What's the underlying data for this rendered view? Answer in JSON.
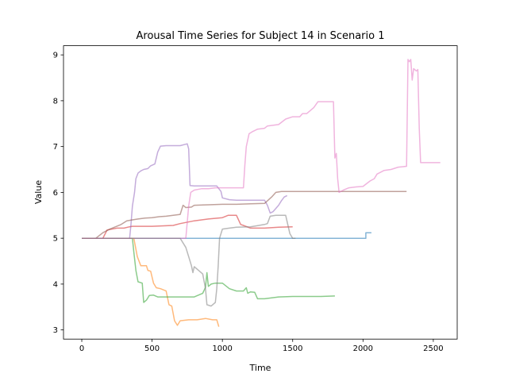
{
  "chart_data": {
    "type": "line",
    "title": "Arousal Time Series for Subject 14 in Scenario 1",
    "xlabel": "Time",
    "ylabel": "Value",
    "xlim": [
      -130,
      2670
    ],
    "ylim": [
      2.8,
      9.2
    ],
    "xticks": [
      0,
      500,
      1000,
      1500,
      2000,
      2500
    ],
    "yticks": [
      3,
      4,
      5,
      6,
      7,
      8,
      9
    ],
    "grid": false,
    "legend": "none",
    "series": [
      {
        "color": "#1f77b4",
        "points": [
          [
            0,
            5.0
          ],
          [
            500,
            5.0
          ],
          [
            1000,
            5.0
          ],
          [
            1500,
            5.0
          ],
          [
            2020,
            5.0
          ],
          [
            2020,
            5.12
          ],
          [
            2060,
            5.12
          ]
        ]
      },
      {
        "color": "#ff7f0e",
        "points": [
          [
            0,
            5.0
          ],
          [
            370,
            5.0
          ],
          [
            395,
            4.6
          ],
          [
            420,
            4.4
          ],
          [
            460,
            4.4
          ],
          [
            470,
            4.3
          ],
          [
            490,
            4.28
          ],
          [
            510,
            4.02
          ],
          [
            530,
            3.92
          ],
          [
            560,
            3.9
          ],
          [
            600,
            3.85
          ],
          [
            620,
            3.55
          ],
          [
            640,
            3.52
          ],
          [
            660,
            3.2
          ],
          [
            680,
            3.1
          ],
          [
            700,
            3.2
          ],
          [
            760,
            3.22
          ],
          [
            820,
            3.22
          ],
          [
            880,
            3.25
          ],
          [
            930,
            3.22
          ],
          [
            960,
            3.22
          ],
          [
            975,
            3.07
          ]
        ]
      },
      {
        "color": "#2ca02c",
        "points": [
          [
            0,
            5.0
          ],
          [
            360,
            5.0
          ],
          [
            370,
            4.7
          ],
          [
            385,
            4.3
          ],
          [
            400,
            4.05
          ],
          [
            430,
            4.02
          ],
          [
            440,
            3.6
          ],
          [
            460,
            3.65
          ],
          [
            480,
            3.75
          ],
          [
            510,
            3.76
          ],
          [
            540,
            3.72
          ],
          [
            600,
            3.72
          ],
          [
            700,
            3.72
          ],
          [
            800,
            3.72
          ],
          [
            860,
            3.8
          ],
          [
            880,
            3.93
          ],
          [
            890,
            4.25
          ],
          [
            900,
            3.95
          ],
          [
            920,
            4.0
          ],
          [
            950,
            4.02
          ],
          [
            1000,
            4.02
          ],
          [
            1050,
            3.9
          ],
          [
            1100,
            3.85
          ],
          [
            1150,
            3.85
          ],
          [
            1170,
            3.92
          ],
          [
            1180,
            3.8
          ],
          [
            1200,
            3.83
          ],
          [
            1230,
            3.82
          ],
          [
            1250,
            3.68
          ],
          [
            1300,
            3.68
          ],
          [
            1350,
            3.7
          ],
          [
            1400,
            3.72
          ],
          [
            1500,
            3.73
          ],
          [
            1600,
            3.73
          ],
          [
            1700,
            3.73
          ],
          [
            1800,
            3.74
          ]
        ]
      },
      {
        "color": "#d62728",
        "points": [
          [
            0,
            5.0
          ],
          [
            150,
            5.0
          ],
          [
            180,
            5.18
          ],
          [
            250,
            5.22
          ],
          [
            300,
            5.22
          ],
          [
            340,
            5.25
          ],
          [
            360,
            5.26
          ],
          [
            500,
            5.26
          ],
          [
            650,
            5.28
          ],
          [
            700,
            5.32
          ],
          [
            800,
            5.38
          ],
          [
            900,
            5.42
          ],
          [
            1000,
            5.45
          ],
          [
            1040,
            5.5
          ],
          [
            1100,
            5.5
          ],
          [
            1130,
            5.3
          ],
          [
            1150,
            5.28
          ],
          [
            1200,
            5.22
          ],
          [
            1300,
            5.22
          ],
          [
            1400,
            5.24
          ],
          [
            1500,
            5.25
          ]
        ]
      },
      {
        "color": "#9467bd",
        "points": [
          [
            0,
            5.0
          ],
          [
            340,
            5.0
          ],
          [
            350,
            5.3
          ],
          [
            360,
            5.7
          ],
          [
            375,
            6.0
          ],
          [
            385,
            6.3
          ],
          [
            400,
            6.42
          ],
          [
            420,
            6.47
          ],
          [
            440,
            6.5
          ],
          [
            470,
            6.52
          ],
          [
            490,
            6.58
          ],
          [
            520,
            6.62
          ],
          [
            540,
            6.88
          ],
          [
            560,
            7.01
          ],
          [
            600,
            7.02
          ],
          [
            700,
            7.02
          ],
          [
            750,
            7.06
          ],
          [
            760,
            6.95
          ],
          [
            770,
            6.15
          ],
          [
            800,
            6.14
          ],
          [
            850,
            6.14
          ],
          [
            900,
            6.14
          ],
          [
            960,
            6.14
          ],
          [
            990,
            6.02
          ],
          [
            1000,
            5.88
          ],
          [
            1050,
            5.84
          ],
          [
            1100,
            5.83
          ],
          [
            1200,
            5.83
          ],
          [
            1300,
            5.83
          ],
          [
            1320,
            5.72
          ],
          [
            1340,
            5.55
          ],
          [
            1360,
            5.58
          ],
          [
            1380,
            5.65
          ],
          [
            1400,
            5.72
          ],
          [
            1420,
            5.82
          ],
          [
            1440,
            5.9
          ],
          [
            1460,
            5.93
          ]
        ]
      },
      {
        "color": "#8c564b",
        "points": [
          [
            0,
            5.0
          ],
          [
            100,
            5.0
          ],
          [
            150,
            5.12
          ],
          [
            200,
            5.2
          ],
          [
            280,
            5.3
          ],
          [
            320,
            5.38
          ],
          [
            360,
            5.4
          ],
          [
            400,
            5.42
          ],
          [
            450,
            5.44
          ],
          [
            500,
            5.45
          ],
          [
            550,
            5.47
          ],
          [
            600,
            5.48
          ],
          [
            650,
            5.5
          ],
          [
            700,
            5.52
          ],
          [
            720,
            5.72
          ],
          [
            740,
            5.67
          ],
          [
            780,
            5.68
          ],
          [
            800,
            5.72
          ],
          [
            900,
            5.73
          ],
          [
            1000,
            5.74
          ],
          [
            1100,
            5.74
          ],
          [
            1200,
            5.75
          ],
          [
            1300,
            5.76
          ],
          [
            1350,
            5.9
          ],
          [
            1380,
            6.0
          ],
          [
            1420,
            6.02
          ],
          [
            1500,
            6.02
          ],
          [
            1600,
            6.02
          ],
          [
            1800,
            6.02
          ],
          [
            2000,
            6.02
          ],
          [
            2200,
            6.02
          ],
          [
            2310,
            6.02
          ]
        ]
      },
      {
        "color": "#e377c2",
        "points": [
          [
            0,
            5.0
          ],
          [
            740,
            5.0
          ],
          [
            760,
            5.7
          ],
          [
            775,
            6.0
          ],
          [
            800,
            6.05
          ],
          [
            850,
            6.08
          ],
          [
            900,
            6.08
          ],
          [
            950,
            6.1
          ],
          [
            1000,
            6.1
          ],
          [
            1100,
            6.1
          ],
          [
            1150,
            6.1
          ],
          [
            1160,
            6.6
          ],
          [
            1170,
            7.0
          ],
          [
            1190,
            7.28
          ],
          [
            1210,
            7.32
          ],
          [
            1250,
            7.38
          ],
          [
            1300,
            7.4
          ],
          [
            1320,
            7.45
          ],
          [
            1400,
            7.48
          ],
          [
            1450,
            7.6
          ],
          [
            1500,
            7.65
          ],
          [
            1550,
            7.65
          ],
          [
            1570,
            7.72
          ],
          [
            1600,
            7.72
          ],
          [
            1650,
            7.85
          ],
          [
            1680,
            7.98
          ],
          [
            1750,
            7.98
          ],
          [
            1790,
            7.98
          ],
          [
            1800,
            6.75
          ],
          [
            1810,
            6.85
          ],
          [
            1820,
            6.3
          ],
          [
            1830,
            6.0
          ],
          [
            1860,
            6.05
          ],
          [
            1900,
            6.1
          ],
          [
            1950,
            6.12
          ],
          [
            2000,
            6.13
          ],
          [
            2050,
            6.25
          ],
          [
            2080,
            6.3
          ],
          [
            2100,
            6.4
          ],
          [
            2150,
            6.48
          ],
          [
            2200,
            6.5
          ],
          [
            2250,
            6.55
          ],
          [
            2310,
            6.57
          ],
          [
            2320,
            8.9
          ],
          [
            2330,
            8.85
          ],
          [
            2340,
            8.9
          ],
          [
            2350,
            8.45
          ],
          [
            2360,
            8.7
          ],
          [
            2380,
            8.65
          ],
          [
            2390,
            8.68
          ],
          [
            2400,
            7.4
          ],
          [
            2410,
            6.65
          ],
          [
            2450,
            6.65
          ],
          [
            2500,
            6.65
          ],
          [
            2550,
            6.65
          ]
        ]
      },
      {
        "color": "#7f7f7f",
        "points": [
          [
            0,
            5.0
          ],
          [
            400,
            5.0
          ],
          [
            600,
            5.0
          ],
          [
            700,
            5.0
          ],
          [
            740,
            4.8
          ],
          [
            760,
            4.6
          ],
          [
            780,
            4.4
          ],
          [
            790,
            4.25
          ],
          [
            800,
            4.38
          ],
          [
            830,
            4.3
          ],
          [
            860,
            4.22
          ],
          [
            880,
            3.9
          ],
          [
            890,
            3.55
          ],
          [
            920,
            3.52
          ],
          [
            950,
            3.6
          ],
          [
            960,
            3.9
          ],
          [
            970,
            4.4
          ],
          [
            980,
            5.0
          ],
          [
            1000,
            5.2
          ],
          [
            1050,
            5.22
          ],
          [
            1100,
            5.24
          ],
          [
            1200,
            5.25
          ],
          [
            1260,
            5.28
          ],
          [
            1300,
            5.3
          ],
          [
            1320,
            5.32
          ],
          [
            1340,
            5.48
          ],
          [
            1380,
            5.5
          ],
          [
            1450,
            5.5
          ],
          [
            1480,
            5.1
          ],
          [
            1500,
            5.0
          ],
          [
            1520,
            5.0
          ]
        ]
      }
    ]
  }
}
